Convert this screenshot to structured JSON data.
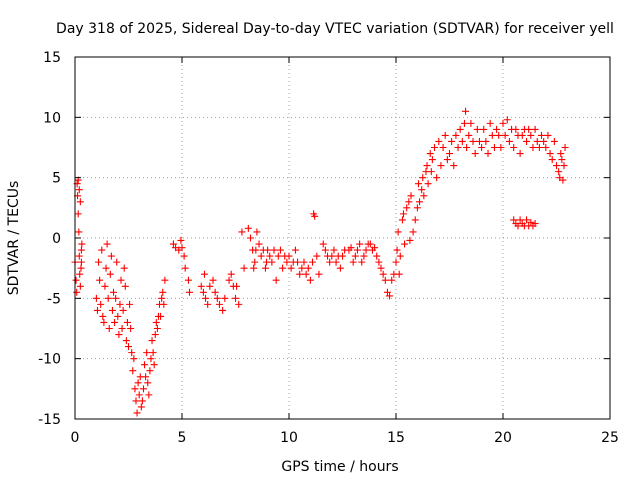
{
  "chart_data": {
    "type": "scatter",
    "title": "Day 318 of 2025, Sidereal Day-to-day VTEC variation (SDTVAR) for receiver yell",
    "xlabel": "GPS time / hours",
    "ylabel": "SDTVAR / TECUs",
    "xlim": [
      0,
      25
    ],
    "ylim": [
      -15,
      15
    ],
    "xticks": [
      0,
      5,
      10,
      15,
      20,
      25
    ],
    "yticks": [
      -15,
      -10,
      -5,
      0,
      5,
      10,
      15
    ],
    "xtick_labels": [
      "0",
      "5",
      "10",
      "15",
      "20",
      "25"
    ],
    "ytick_labels": [
      "-15",
      "-10",
      "-5",
      "0",
      "5",
      "10",
      "15"
    ],
    "grid": true,
    "marker": "+",
    "series_color": "#ff0000",
    "series": [
      {
        "name": "SDTVAR",
        "points": [
          [
            0.0,
            -2.0
          ],
          [
            0.05,
            -3.5
          ],
          [
            0.08,
            -4.5
          ],
          [
            0.1,
            4.5
          ],
          [
            0.12,
            3.5
          ],
          [
            0.15,
            2.0
          ],
          [
            0.18,
            0.5
          ],
          [
            0.2,
            -1.5
          ],
          [
            0.22,
            -3.0
          ],
          [
            0.25,
            -4.0
          ],
          [
            0.28,
            -2.5
          ],
          [
            0.3,
            -1.0
          ],
          [
            0.15,
            4.8
          ],
          [
            0.2,
            4.0
          ],
          [
            0.25,
            3.0
          ],
          [
            0.3,
            -2.0
          ],
          [
            0.32,
            -0.5
          ],
          [
            1.0,
            -5.0
          ],
          [
            1.05,
            -6.0
          ],
          [
            1.1,
            -2.0
          ],
          [
            1.15,
            -3.5
          ],
          [
            1.2,
            -5.5
          ],
          [
            1.25,
            -1.0
          ],
          [
            1.3,
            -6.5
          ],
          [
            1.35,
            -7.0
          ],
          [
            1.4,
            -4.0
          ],
          [
            1.45,
            -2.5
          ],
          [
            1.5,
            -0.5
          ],
          [
            1.55,
            -5.0
          ],
          [
            1.6,
            -7.5
          ],
          [
            1.65,
            -3.0
          ],
          [
            1.7,
            -1.5
          ],
          [
            1.75,
            -6.0
          ],
          [
            1.8,
            -4.5
          ],
          [
            1.85,
            -7.0
          ],
          [
            1.9,
            -5.0
          ],
          [
            1.95,
            -2.0
          ],
          [
            2.0,
            -6.5
          ],
          [
            2.05,
            -8.0
          ],
          [
            2.1,
            -5.5
          ],
          [
            2.15,
            -3.5
          ],
          [
            2.2,
            -7.5
          ],
          [
            2.25,
            -6.0
          ],
          [
            2.3,
            -2.5
          ],
          [
            2.35,
            -4.0
          ],
          [
            2.4,
            -8.5
          ],
          [
            2.45,
            -7.0
          ],
          [
            2.5,
            -9.0
          ],
          [
            2.55,
            -5.5
          ],
          [
            2.6,
            -7.5
          ],
          [
            2.65,
            -9.5
          ],
          [
            2.7,
            -11.0
          ],
          [
            2.75,
            -10.0
          ],
          [
            2.8,
            -12.5
          ],
          [
            2.85,
            -13.5
          ],
          [
            2.9,
            -14.5
          ],
          [
            2.95,
            -12.0
          ],
          [
            3.0,
            -13.0
          ],
          [
            3.05,
            -11.5
          ],
          [
            3.1,
            -14.0
          ],
          [
            3.15,
            -13.5
          ],
          [
            3.2,
            -12.5
          ],
          [
            3.25,
            -10.5
          ],
          [
            3.3,
            -11.5
          ],
          [
            3.35,
            -9.5
          ],
          [
            3.4,
            -12.0
          ],
          [
            3.45,
            -13.0
          ],
          [
            3.5,
            -11.0
          ],
          [
            3.55,
            -10.0
          ],
          [
            3.6,
            -8.5
          ],
          [
            3.65,
            -9.5
          ],
          [
            3.7,
            -10.5
          ],
          [
            3.75,
            -8.0
          ],
          [
            3.8,
            -7.0
          ],
          [
            3.85,
            -7.5
          ],
          [
            3.9,
            -6.5
          ],
          [
            3.95,
            -5.5
          ],
          [
            4.0,
            -6.5
          ],
          [
            4.05,
            -5.0
          ],
          [
            4.1,
            -4.5
          ],
          [
            4.15,
            -5.5
          ],
          [
            4.2,
            -3.5
          ],
          [
            4.6,
            -0.5
          ],
          [
            4.7,
            -0.8
          ],
          [
            4.85,
            -1.0
          ],
          [
            4.95,
            -0.2
          ],
          [
            5.0,
            -0.8
          ],
          [
            5.1,
            -1.5
          ],
          [
            5.15,
            -2.5
          ],
          [
            5.3,
            -3.5
          ],
          [
            5.35,
            -4.5
          ],
          [
            5.9,
            -4.0
          ],
          [
            6.0,
            -4.5
          ],
          [
            6.05,
            -3.0
          ],
          [
            6.1,
            -5.0
          ],
          [
            6.2,
            -5.5
          ],
          [
            6.3,
            -4.0
          ],
          [
            6.45,
            -3.5
          ],
          [
            6.55,
            -4.5
          ],
          [
            6.65,
            -5.0
          ],
          [
            6.75,
            -5.5
          ],
          [
            6.9,
            -6.0
          ],
          [
            7.0,
            -5.0
          ],
          [
            7.2,
            -3.5
          ],
          [
            7.3,
            -3.0
          ],
          [
            7.4,
            -4.0
          ],
          [
            7.5,
            -5.0
          ],
          [
            7.55,
            -4.0
          ],
          [
            7.65,
            -5.5
          ],
          [
            7.8,
            0.5
          ],
          [
            7.9,
            -2.5
          ],
          [
            8.1,
            0.8
          ],
          [
            8.2,
            0.0
          ],
          [
            8.3,
            -1.0
          ],
          [
            8.35,
            -2.5
          ],
          [
            8.4,
            -2.0
          ],
          [
            8.45,
            -1.0
          ],
          [
            8.5,
            0.5
          ],
          [
            8.6,
            -0.5
          ],
          [
            8.7,
            -1.5
          ],
          [
            8.8,
            -1.0
          ],
          [
            8.9,
            -2.5
          ],
          [
            8.95,
            -2.0
          ],
          [
            9.0,
            -1.0
          ],
          [
            9.1,
            -1.5
          ],
          [
            9.2,
            -2.0
          ],
          [
            9.3,
            -1.0
          ],
          [
            9.4,
            -3.5
          ],
          [
            9.5,
            -1.5
          ],
          [
            9.6,
            -1.0
          ],
          [
            9.7,
            -2.5
          ],
          [
            9.8,
            -1.5
          ],
          [
            9.9,
            -2.0
          ],
          [
            10.0,
            -1.5
          ],
          [
            10.1,
            -2.5
          ],
          [
            10.2,
            -2.0
          ],
          [
            10.3,
            -1.0
          ],
          [
            10.4,
            -2.0
          ],
          [
            10.5,
            -3.0
          ],
          [
            10.6,
            -2.5
          ],
          [
            10.7,
            -2.0
          ],
          [
            10.8,
            -3.0
          ],
          [
            10.9,
            -2.5
          ],
          [
            11.0,
            -3.5
          ],
          [
            11.1,
            -2.0
          ],
          [
            11.15,
            2.0
          ],
          [
            11.2,
            1.8
          ],
          [
            11.3,
            -1.5
          ],
          [
            11.4,
            -3.0
          ],
          [
            11.6,
            -0.5
          ],
          [
            11.7,
            -1.0
          ],
          [
            11.8,
            -1.5
          ],
          [
            11.9,
            -2.0
          ],
          [
            12.0,
            -1.5
          ],
          [
            12.1,
            -1.0
          ],
          [
            12.2,
            -2.0
          ],
          [
            12.3,
            -1.5
          ],
          [
            12.4,
            -2.5
          ],
          [
            12.5,
            -1.5
          ],
          [
            12.6,
            -1.0
          ],
          [
            12.8,
            -1.0
          ],
          [
            12.9,
            -0.8
          ],
          [
            13.0,
            -2.0
          ],
          [
            13.1,
            -1.5
          ],
          [
            13.2,
            -1.0
          ],
          [
            13.3,
            -0.5
          ],
          [
            13.4,
            -2.0
          ],
          [
            13.5,
            -1.5
          ],
          [
            13.6,
            -1.0
          ],
          [
            13.7,
            -0.5
          ],
          [
            13.8,
            -0.5
          ],
          [
            13.9,
            -1.0
          ],
          [
            14.0,
            -0.8
          ],
          [
            14.1,
            -1.5
          ],
          [
            14.2,
            -2.0
          ],
          [
            14.3,
            -2.5
          ],
          [
            14.4,
            -3.0
          ],
          [
            14.5,
            -3.5
          ],
          [
            14.6,
            -4.5
          ],
          [
            14.7,
            -4.8
          ],
          [
            14.8,
            -3.5
          ],
          [
            14.9,
            -3.0
          ],
          [
            15.0,
            -2.0
          ],
          [
            15.05,
            -1.0
          ],
          [
            15.1,
            0.5
          ],
          [
            15.15,
            -3.0
          ],
          [
            15.2,
            -1.5
          ],
          [
            15.3,
            1.5
          ],
          [
            15.35,
            2.0
          ],
          [
            15.4,
            -0.5
          ],
          [
            15.5,
            2.5
          ],
          [
            15.6,
            3.0
          ],
          [
            15.65,
            -0.2
          ],
          [
            15.7,
            3.5
          ],
          [
            15.8,
            0.5
          ],
          [
            15.9,
            1.5
          ],
          [
            16.0,
            2.5
          ],
          [
            16.05,
            4.5
          ],
          [
            16.1,
            3.0
          ],
          [
            16.2,
            4.0
          ],
          [
            16.25,
            5.0
          ],
          [
            16.3,
            3.5
          ],
          [
            16.4,
            5.5
          ],
          [
            16.45,
            6.0
          ],
          [
            16.5,
            4.5
          ],
          [
            16.6,
            7.0
          ],
          [
            16.65,
            5.5
          ],
          [
            16.7,
            6.5
          ],
          [
            16.8,
            7.5
          ],
          [
            16.9,
            5.0
          ],
          [
            17.0,
            8.0
          ],
          [
            17.1,
            6.0
          ],
          [
            17.2,
            7.5
          ],
          [
            17.3,
            8.5
          ],
          [
            17.4,
            6.5
          ],
          [
            17.5,
            7.0
          ],
          [
            17.6,
            8.0
          ],
          [
            17.7,
            6.0
          ],
          [
            17.8,
            8.5
          ],
          [
            17.9,
            7.5
          ],
          [
            18.0,
            9.0
          ],
          [
            18.1,
            8.0
          ],
          [
            18.2,
            9.5
          ],
          [
            18.25,
            10.5
          ],
          [
            18.3,
            7.5
          ],
          [
            18.4,
            8.5
          ],
          [
            18.5,
            9.5
          ],
          [
            18.6,
            8.0
          ],
          [
            18.7,
            7.0
          ],
          [
            18.8,
            9.0
          ],
          [
            18.9,
            8.0
          ],
          [
            19.0,
            7.5
          ],
          [
            19.1,
            9.0
          ],
          [
            19.2,
            8.0
          ],
          [
            19.3,
            7.0
          ],
          [
            19.4,
            9.5
          ],
          [
            19.5,
            8.5
          ],
          [
            19.6,
            7.5
          ],
          [
            19.7,
            9.0
          ],
          [
            19.8,
            8.5
          ],
          [
            19.9,
            7.5
          ],
          [
            20.0,
            9.5
          ],
          [
            20.1,
            8.5
          ],
          [
            20.2,
            9.8
          ],
          [
            20.3,
            8.0
          ],
          [
            20.4,
            9.0
          ],
          [
            20.5,
            7.5
          ],
          [
            20.6,
            9.0
          ],
          [
            20.7,
            8.5
          ],
          [
            20.8,
            7.0
          ],
          [
            20.9,
            8.5
          ],
          [
            20.5,
            1.5
          ],
          [
            20.6,
            1.2
          ],
          [
            20.7,
            1.0
          ],
          [
            20.8,
            1.5
          ],
          [
            20.9,
            1.2
          ],
          [
            21.0,
            1.0
          ],
          [
            21.1,
            1.5
          ],
          [
            21.2,
            1.0
          ],
          [
            21.3,
            1.3
          ],
          [
            21.4,
            1.0
          ],
          [
            21.5,
            1.2
          ],
          [
            21.0,
            9.0
          ],
          [
            21.1,
            8.0
          ],
          [
            21.2,
            9.0
          ],
          [
            21.3,
            8.5
          ],
          [
            21.4,
            7.5
          ],
          [
            21.5,
            9.0
          ],
          [
            21.6,
            8.0
          ],
          [
            21.7,
            7.5
          ],
          [
            21.8,
            8.5
          ],
          [
            21.9,
            8.0
          ],
          [
            22.0,
            7.5
          ],
          [
            22.1,
            8.5
          ],
          [
            22.2,
            7.0
          ],
          [
            22.3,
            6.5
          ],
          [
            22.4,
            8.0
          ],
          [
            22.5,
            6.0
          ],
          [
            22.6,
            5.5
          ],
          [
            22.65,
            5.0
          ],
          [
            22.7,
            7.0
          ],
          [
            22.75,
            6.5
          ],
          [
            22.8,
            4.8
          ],
          [
            22.85,
            6.0
          ],
          [
            22.9,
            7.5
          ]
        ]
      }
    ]
  }
}
